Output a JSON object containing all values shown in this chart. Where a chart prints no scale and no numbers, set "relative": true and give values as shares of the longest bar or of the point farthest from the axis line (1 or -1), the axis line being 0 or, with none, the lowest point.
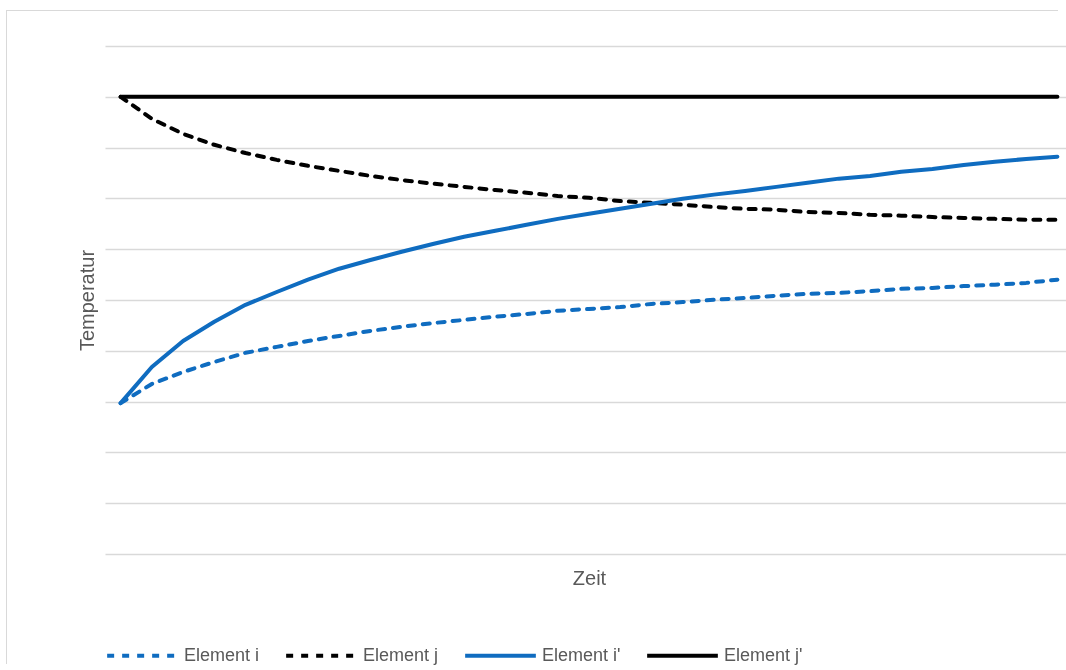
{
  "chart_data": {
    "type": "line",
    "relative": true,
    "xlabel": "Zeit",
    "ylabel": "Temperatur",
    "grid": "y",
    "legend": "bottom",
    "marker": "none",
    "categories": [
      null,
      null,
      null,
      null,
      null,
      null,
      null,
      null,
      null,
      null,
      null,
      null,
      null,
      null,
      null,
      null,
      null,
      null,
      null,
      null,
      null,
      null,
      null,
      null,
      null,
      null,
      null,
      null,
      null,
      null,
      null
    ],
    "series": [
      {
        "name": "Element i",
        "color": "#0f6cc0",
        "line_style": "dashed",
        "values": [
          0.33,
          0.372,
          0.398,
          0.42,
          0.44,
          0.453,
          0.466,
          0.477,
          0.488,
          0.497,
          0.505,
          0.512,
          0.519,
          0.525,
          0.532,
          0.536,
          0.54,
          0.547,
          0.551,
          0.556,
          0.56,
          0.565,
          0.569,
          0.571,
          0.575,
          0.58,
          0.582,
          0.586,
          0.589,
          0.593,
          0.6
        ]
      },
      {
        "name": "Element j",
        "color": "#000000",
        "line_style": "dashed",
        "values": [
          1,
          0.952,
          0.919,
          0.895,
          0.877,
          0.862,
          0.849,
          0.838,
          0.827,
          0.818,
          0.81,
          0.803,
          0.796,
          0.79,
          0.783,
          0.779,
          0.772,
          0.768,
          0.764,
          0.759,
          0.755,
          0.753,
          0.748,
          0.746,
          0.742,
          0.74,
          0.737,
          0.735,
          0.733,
          0.731,
          0.731
        ]
      },
      {
        "name": "Element i'",
        "color": "#0f6cc0",
        "line_style": "solid",
        "values": [
          0.33,
          0.409,
          0.466,
          0.508,
          0.545,
          0.573,
          0.6,
          0.624,
          0.643,
          0.661,
          0.678,
          0.694,
          0.707,
          0.72,
          0.733,
          0.744,
          0.755,
          0.766,
          0.777,
          0.786,
          0.794,
          0.803,
          0.812,
          0.821,
          0.827,
          0.836,
          0.842,
          0.851,
          0.858,
          0.864,
          0.869
        ]
      },
      {
        "name": "Element j'",
        "color": "#000000",
        "line_style": "solid",
        "values": [
          1,
          1,
          1,
          1,
          1,
          1,
          1,
          1,
          1,
          1,
          1,
          1,
          1,
          1,
          1,
          1,
          1,
          1,
          1,
          1,
          1,
          1,
          1,
          1,
          1,
          1,
          1,
          1,
          1,
          1,
          1
        ]
      }
    ]
  }
}
